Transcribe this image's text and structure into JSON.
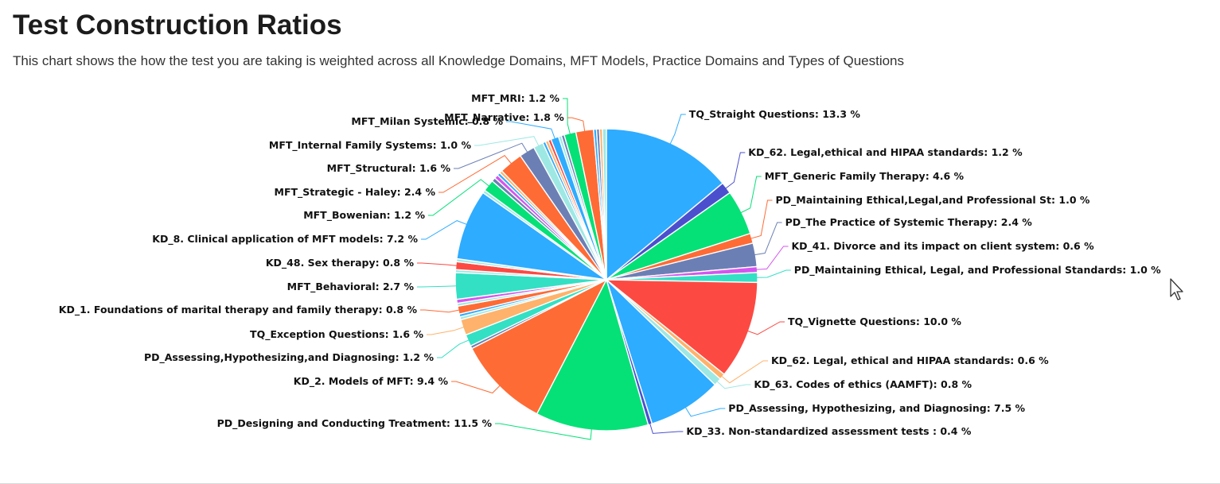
{
  "header": {
    "title": "Test Construction Ratios",
    "subtitle": "This chart shows the how the test you are taking is weighted across all Knowledge Domains, MFT Models, Practice Domains and Types of Questions"
  },
  "chart_data": {
    "type": "pie",
    "unit": "%",
    "slices": [
      {
        "label": "TQ_Straight Questions",
        "value": 13.3,
        "color": "#2eacff"
      },
      {
        "label": "KD_62. Legal,ethical and HIPAA standards",
        "value": 1.2,
        "color": "#4b4fce"
      },
      {
        "label": "MFT_Generic Family Therapy",
        "value": 4.6,
        "color": "#05e177"
      },
      {
        "label": "PD_Maintaining Ethical,Legal,and Professional St",
        "value": 1.0,
        "color": "#ff6b35"
      },
      {
        "label": "PD_The Practice of Systemic Therapy",
        "value": 2.4,
        "color": "#6c7fb5"
      },
      {
        "label": "KD_41. Divorce and its impact on client system",
        "value": 0.6,
        "color": "#d455ee"
      },
      {
        "label": "PD_Maintaining Ethical, Legal, and Professional Standards",
        "value": 1.0,
        "color": "#33e0c4"
      },
      {
        "label": "TQ_Vignette Questions",
        "value": 10.0,
        "color": "#fc4a43"
      },
      {
        "label": "KD_62. Legal, ethical and HIPAA standards",
        "value": 0.6,
        "color": "#ffb26b"
      },
      {
        "label": "KD_63. Codes of ethics (AAMFT)",
        "value": 0.8,
        "color": "#9ee8e4"
      },
      {
        "label": "PD_Assessing, Hypothesizing, and Diagnosing",
        "value": 7.5,
        "color": "#2eacff"
      },
      {
        "label": "KD_33. Non-standardized assessment tests ",
        "value": 0.4,
        "color": "#4b4fce"
      },
      {
        "label": "PD_Designing and Conducting Treatment",
        "value": 11.5,
        "color": "#05e177"
      },
      {
        "label": "KD_2. Models of MFT",
        "value": 9.4,
        "color": "#ff6b35"
      },
      {
        "label": "",
        "value": 0.3,
        "color": "#6c7fb5"
      },
      {
        "label": "PD_Assessing,Hypothesizing,and Diagnosing",
        "value": 1.2,
        "color": "#33e0c4"
      },
      {
        "label": "TQ_Exception Questions",
        "value": 1.6,
        "color": "#ffb26b"
      },
      {
        "label": "",
        "value": 0.3,
        "color": "#9ee8e4"
      },
      {
        "label": "",
        "value": 0.3,
        "color": "#2eacff"
      },
      {
        "label": "KD_1. Foundations of marital therapy and family therapy",
        "value": 0.8,
        "color": "#ff6b35"
      },
      {
        "label": "",
        "value": 0.3,
        "color": "#9ee8e4"
      },
      {
        "label": "",
        "value": 0.4,
        "color": "#d455ee"
      },
      {
        "label": "MFT_Behavioral",
        "value": 2.7,
        "color": "#33e0c4"
      },
      {
        "label": "",
        "value": 0.3,
        "color": "#9ee8e4"
      },
      {
        "label": "KD_48. Sex therapy",
        "value": 0.8,
        "color": "#fc4a43"
      },
      {
        "label": "",
        "value": 0.3,
        "color": "#9ee8e4"
      },
      {
        "label": "KD_8. Clinical application of MFT models",
        "value": 7.2,
        "color": "#2eacff"
      },
      {
        "label": "",
        "value": 0.3,
        "color": "#9ee8e4"
      },
      {
        "label": "MFT_Bowenian",
        "value": 1.2,
        "color": "#05e177"
      },
      {
        "label": "",
        "value": 0.4,
        "color": "#6c7fb5"
      },
      {
        "label": "",
        "value": 0.4,
        "color": "#d455ee"
      },
      {
        "label": "",
        "value": 0.3,
        "color": "#2eacff"
      },
      {
        "label": "",
        "value": 0.3,
        "color": "#ffb26b"
      },
      {
        "label": "MFT_Strategic - Haley",
        "value": 2.4,
        "color": "#ff6b35"
      },
      {
        "label": "MFT_Structural",
        "value": 1.6,
        "color": "#6c7fb5"
      },
      {
        "label": "MFT_Internal Family Systems",
        "value": 1.0,
        "color": "#9ee8e4"
      },
      {
        "label": "",
        "value": 0.3,
        "color": "#2eacff"
      },
      {
        "label": "",
        "value": 0.3,
        "color": "#ffb26b"
      },
      {
        "label": "",
        "value": 0.3,
        "color": "#fc4a43"
      },
      {
        "label": "MFT_Milan Systemic",
        "value": 0.8,
        "color": "#2eacff"
      },
      {
        "label": "",
        "value": 0.3,
        "color": "#9ee8e4"
      },
      {
        "label": "",
        "value": 0.3,
        "color": "#6c7fb5"
      },
      {
        "label": "MFT_MRI",
        "value": 1.2,
        "color": "#05e177"
      },
      {
        "label": "MFT_Narrative",
        "value": 1.8,
        "color": "#ff6b35"
      },
      {
        "label": "",
        "value": 0.3,
        "color": "#2eacff"
      },
      {
        "label": "",
        "value": 0.3,
        "color": "#6c7fb5"
      },
      {
        "label": "",
        "value": 0.3,
        "color": "#ffb26b"
      },
      {
        "label": "",
        "value": 0.4,
        "color": "#9ee8e4"
      }
    ]
  }
}
